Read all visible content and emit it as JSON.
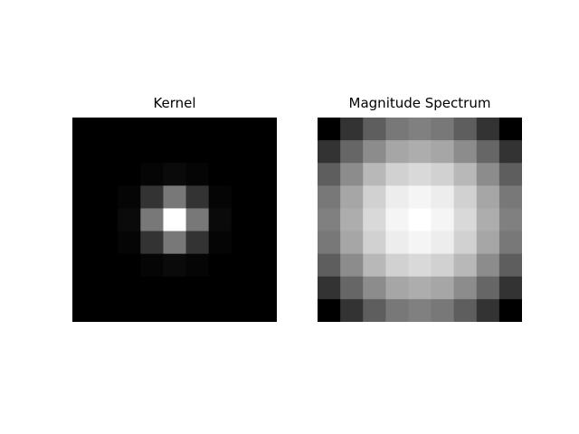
{
  "chart_data": [
    {
      "type": "heatmap",
      "title": "Kernel",
      "colormap": "gray",
      "axes_visible": false,
      "grid": false,
      "rows": 9,
      "cols": 9,
      "matrix": [
        [
          0.0,
          0.0,
          0.0,
          0.0,
          0.0,
          0.0,
          0.0,
          0.0,
          0.0
        ],
        [
          0.0,
          0.0,
          0.0,
          0.0,
          0.0,
          0.0,
          0.0,
          0.0,
          0.0
        ],
        [
          0.0,
          0.0,
          0.0,
          0.02,
          0.04,
          0.02,
          0.0,
          0.0,
          0.0
        ],
        [
          0.0,
          0.0,
          0.02,
          0.2,
          0.47,
          0.2,
          0.02,
          0.0,
          0.0
        ],
        [
          0.0,
          0.0,
          0.04,
          0.47,
          1.0,
          0.47,
          0.04,
          0.0,
          0.0
        ],
        [
          0.0,
          0.0,
          0.02,
          0.2,
          0.47,
          0.2,
          0.02,
          0.0,
          0.0
        ],
        [
          0.0,
          0.0,
          0.0,
          0.02,
          0.04,
          0.02,
          0.0,
          0.0,
          0.0
        ],
        [
          0.0,
          0.0,
          0.0,
          0.0,
          0.0,
          0.0,
          0.0,
          0.0,
          0.0
        ],
        [
          0.0,
          0.0,
          0.0,
          0.0,
          0.0,
          0.0,
          0.0,
          0.0,
          0.0
        ]
      ]
    },
    {
      "type": "heatmap",
      "title": "Magnitude Spectrum",
      "colormap": "gray",
      "axes_visible": false,
      "grid": false,
      "rows": 9,
      "cols": 9,
      "matrix": [
        [
          0.0,
          0.2,
          0.37,
          0.47,
          0.5,
          0.47,
          0.37,
          0.2,
          0.0
        ],
        [
          0.2,
          0.4,
          0.55,
          0.65,
          0.68,
          0.65,
          0.55,
          0.4,
          0.2
        ],
        [
          0.37,
          0.55,
          0.72,
          0.82,
          0.85,
          0.82,
          0.72,
          0.55,
          0.37
        ],
        [
          0.47,
          0.65,
          0.82,
          0.93,
          0.96,
          0.93,
          0.82,
          0.65,
          0.47
        ],
        [
          0.5,
          0.68,
          0.85,
          0.96,
          1.0,
          0.96,
          0.85,
          0.68,
          0.5
        ],
        [
          0.47,
          0.65,
          0.82,
          0.93,
          0.96,
          0.93,
          0.82,
          0.65,
          0.47
        ],
        [
          0.37,
          0.55,
          0.72,
          0.82,
          0.85,
          0.82,
          0.72,
          0.55,
          0.37
        ],
        [
          0.2,
          0.4,
          0.55,
          0.65,
          0.68,
          0.65,
          0.55,
          0.4,
          0.2
        ],
        [
          0.0,
          0.2,
          0.37,
          0.47,
          0.5,
          0.47,
          0.37,
          0.2,
          0.0
        ]
      ]
    }
  ]
}
